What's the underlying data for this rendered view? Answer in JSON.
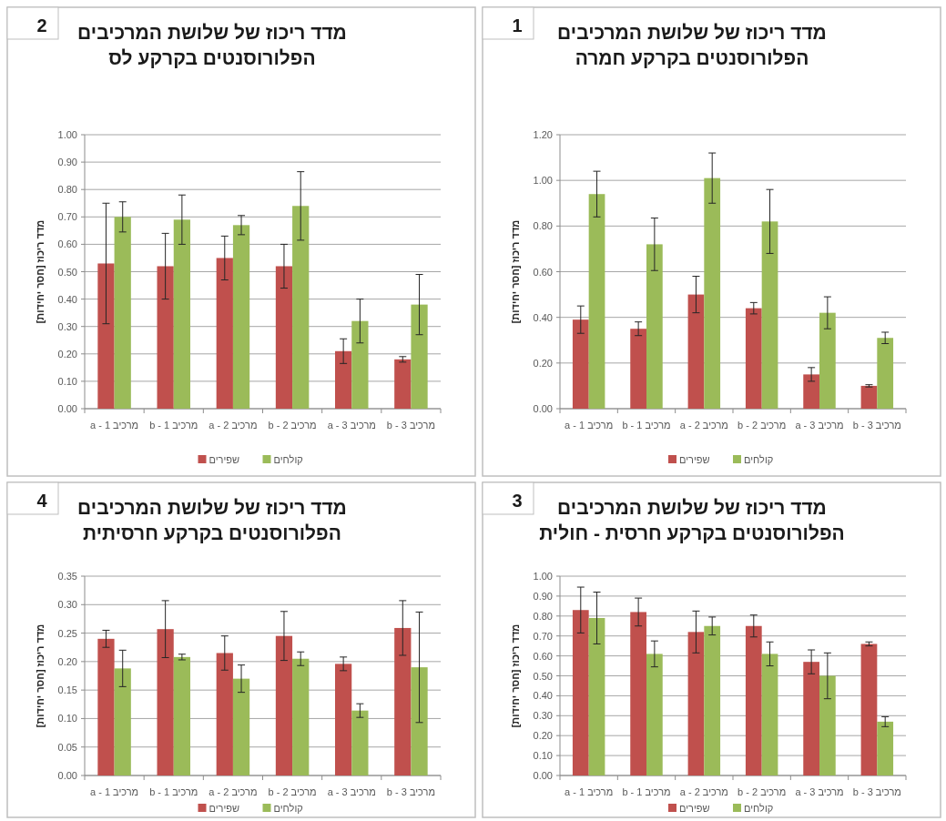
{
  "chart_data": [
    {
      "type": "bar",
      "title": "מדד ריכוז של שלושת המרכיבים הפלורוסנטים בקרקע לס",
      "annotations": [
        "2"
      ],
      "ylabel": "מדד ריכוז [חסר יחידות]",
      "categories": [
        "מרכיב 1 - a",
        "מרכיב 1 - b",
        "מרכיב 2 - a",
        "מרכיב 2 - b",
        "מרכיב 3 - a",
        "מרכיב 3 - b"
      ],
      "series": [
        {
          "name": "שפירים",
          "color": "#c0504d",
          "values": [
            0.53,
            0.52,
            0.55,
            0.52,
            0.21,
            0.18
          ],
          "errors": [
            0.22,
            0.12,
            0.08,
            0.08,
            0.045,
            0.01
          ]
        },
        {
          "name": "קולחים",
          "color": "#9bbb59",
          "values": [
            0.7,
            0.69,
            0.67,
            0.74,
            0.32,
            0.38
          ],
          "errors": [
            0.055,
            0.09,
            0.035,
            0.125,
            0.08,
            0.11
          ]
        }
      ],
      "ylim": [
        0,
        1
      ],
      "yticks": [
        {
          "value": 0,
          "label": "0.00"
        },
        {
          "value": 0.1,
          "label": "0.10"
        },
        {
          "value": 0.2,
          "label": "0.20"
        },
        {
          "value": 0.3,
          "label": "0.30"
        },
        {
          "value": 0.4,
          "label": "0.40"
        },
        {
          "value": 0.5,
          "label": "0.50"
        },
        {
          "value": 0.6,
          "label": "0.60"
        },
        {
          "value": 0.7,
          "label": "0.70"
        },
        {
          "value": 0.8,
          "label": "0.80"
        },
        {
          "value": 0.9,
          "label": "0.90"
        },
        {
          "value": 1,
          "label": "1.00"
        }
      ],
      "grid": "y",
      "legend": "bottom"
    },
    {
      "type": "bar",
      "title": "מדד ריכוז של שלושת המרכיבים הפלורוסנטים בקרקע חמרה",
      "annotations": [
        "1"
      ],
      "ylabel": "מדד ריכוז [חסר יחידות]",
      "categories": [
        "מרכיב 1 - a",
        "מרכיב 1 - b",
        "מרכיב 2 - a",
        "מרכיב 2 - b",
        "מרכיב 3 - a",
        "מרכיב 3 - b"
      ],
      "series": [
        {
          "name": "שפירים",
          "color": "#c0504d",
          "values": [
            0.39,
            0.35,
            0.5,
            0.44,
            0.15,
            0.1
          ],
          "errors": [
            0.06,
            0.03,
            0.08,
            0.025,
            0.03,
            0.005
          ]
        },
        {
          "name": "קולחים",
          "color": "#9bbb59",
          "values": [
            0.94,
            0.72,
            1.01,
            0.82,
            0.42,
            0.31
          ],
          "errors": [
            0.1,
            0.115,
            0.11,
            0.14,
            0.07,
            0.025
          ]
        }
      ],
      "ylim": [
        0,
        1.2
      ],
      "yticks": [
        {
          "value": 0,
          "label": "0.00"
        },
        {
          "value": 0.2,
          "label": "0.20"
        },
        {
          "value": 0.4,
          "label": "0.40"
        },
        {
          "value": 0.6,
          "label": "0.60"
        },
        {
          "value": 0.8,
          "label": "0.80"
        },
        {
          "value": 1,
          "label": "1.00"
        },
        {
          "value": 1.2,
          "label": "1.20"
        }
      ],
      "grid": "y",
      "legend": "bottom"
    },
    {
      "type": "bar",
      "title": "מדד ריכוז של שלושת המרכיבים הפלורוסנטים בקרקע חרסיתית",
      "annotations": [
        "4"
      ],
      "ylabel": "מדד ריכוז [חסר יחידות]",
      "categories": [
        "מרכיב 1 - a",
        "מרכיב 1 - b",
        "מרכיב 2 - a",
        "מרכיב 2 - b",
        "מרכיב 3 - a",
        "מרכיב 3 - b"
      ],
      "series": [
        {
          "name": "שפירים",
          "color": "#c0504d",
          "values": [
            0.24,
            0.257,
            0.215,
            0.245,
            0.196,
            0.259
          ],
          "errors": [
            0.015,
            0.05,
            0.03,
            0.043,
            0.012,
            0.048
          ]
        },
        {
          "name": "קולחים",
          "color": "#9bbb59",
          "values": [
            0.188,
            0.208,
            0.17,
            0.205,
            0.114,
            0.19
          ],
          "errors": [
            0.032,
            0.005,
            0.024,
            0.012,
            0.012,
            0.097
          ]
        }
      ],
      "ylim": [
        0,
        0.35
      ],
      "yticks": [
        {
          "value": 0,
          "label": "0.00"
        },
        {
          "value": 0.05,
          "label": "0.05"
        },
        {
          "value": 0.1,
          "label": "0.10"
        },
        {
          "value": 0.15,
          "label": "0.15"
        },
        {
          "value": 0.2,
          "label": "0.20"
        },
        {
          "value": 0.25,
          "label": "0.25"
        },
        {
          "value": 0.3,
          "label": "0.30"
        },
        {
          "value": 0.35,
          "label": "0.35"
        }
      ],
      "grid": "y",
      "legend": "bottom"
    },
    {
      "type": "bar",
      "title": "מדד ריכוז של שלושת המרכיבים הפלורוסנטים בקרקע חרסית - חולית",
      "annotations": [
        "3"
      ],
      "ylabel": "מדד ריכוז [חסר יחידות]",
      "categories": [
        "מרכיב 1 - a",
        "מרכיב 1 - b",
        "מרכיב 2 - a",
        "מרכיב 2 - b",
        "מרכיב 3 - a",
        "מרכיב 3 - b"
      ],
      "series": [
        {
          "name": "שפירים",
          "color": "#c0504d",
          "values": [
            0.83,
            0.82,
            0.72,
            0.75,
            0.57,
            0.66
          ],
          "errors": [
            0.115,
            0.07,
            0.105,
            0.055,
            0.06,
            0.01
          ]
        },
        {
          "name": "קולחים",
          "color": "#9bbb59",
          "values": [
            0.79,
            0.61,
            0.75,
            0.61,
            0.5,
            0.27
          ],
          "errors": [
            0.13,
            0.065,
            0.045,
            0.06,
            0.115,
            0.025
          ]
        }
      ],
      "ylim": [
        0,
        1
      ],
      "yticks": [
        {
          "value": 0,
          "label": "0.00"
        },
        {
          "value": 0.1,
          "label": "0.10"
        },
        {
          "value": 0.2,
          "label": "0.20"
        },
        {
          "value": 0.3,
          "label": "0.30"
        },
        {
          "value": 0.4,
          "label": "0.40"
        },
        {
          "value": 0.5,
          "label": "0.50"
        },
        {
          "value": 0.6,
          "label": "0.60"
        },
        {
          "value": 0.7,
          "label": "0.70"
        },
        {
          "value": 0.8,
          "label": "0.80"
        },
        {
          "value": 0.9,
          "label": "0.90"
        },
        {
          "value": 1,
          "label": "1.00"
        }
      ],
      "grid": "y",
      "legend": "bottom"
    }
  ]
}
